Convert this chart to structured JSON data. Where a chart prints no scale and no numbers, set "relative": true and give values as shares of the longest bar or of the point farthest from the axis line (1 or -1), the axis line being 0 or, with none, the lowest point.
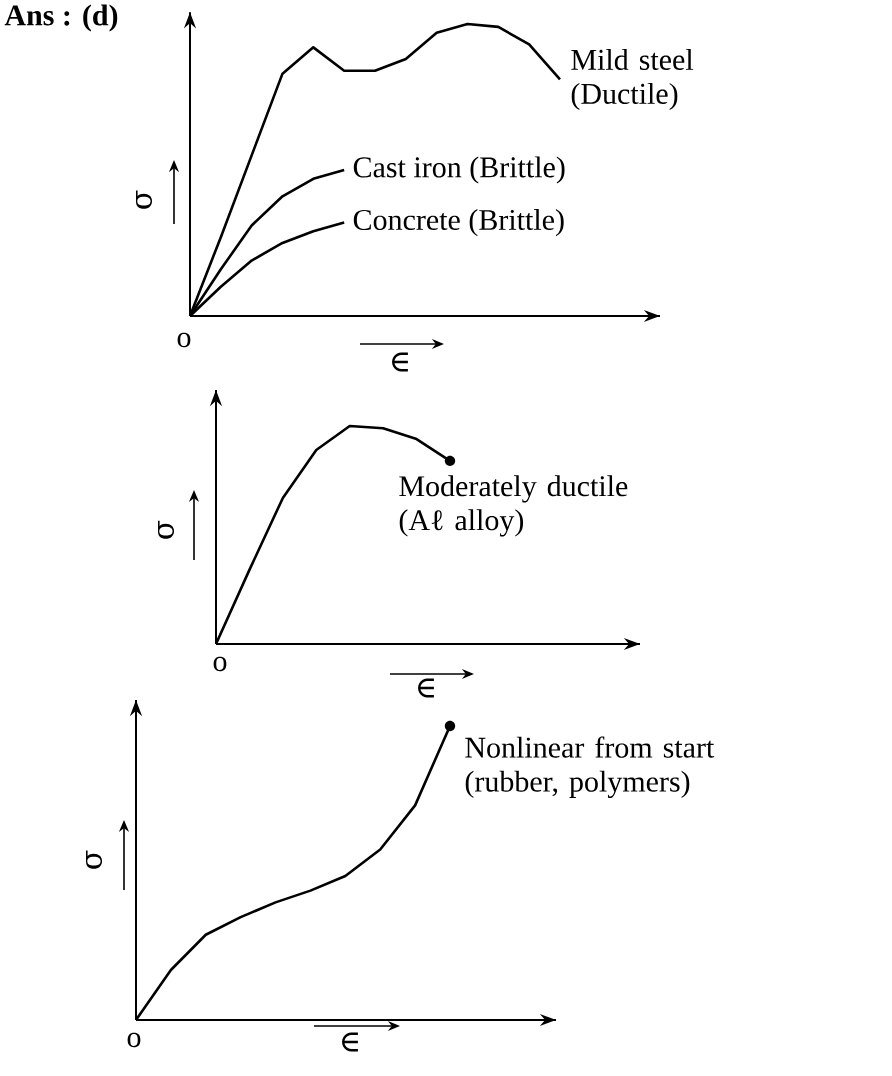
{
  "chart_data": [
    {
      "type": "line",
      "relative": true,
      "title": "Ans : (d)",
      "xlabel": "∈",
      "ylabel": "σ",
      "annotations": [
        "o"
      ],
      "tick_labels": false,
      "categories": [
        null,
        null,
        null,
        null,
        null,
        null,
        null,
        null,
        null,
        null,
        null,
        null,
        null
      ],
      "series": [
        {
          "name": "Mild steel (Ductile)",
          "color": "#000000",
          "values": [
            0,
            0.27,
            0.55,
            0.83,
            0.92,
            0.84,
            0.84,
            0.88,
            0.97,
            1.0,
            0.99,
            0.93,
            0.81
          ]
        },
        {
          "name": "Cast iron (Brittle)",
          "color": "#000000",
          "values": [
            0,
            0.16,
            0.31,
            0.41,
            0.47,
            0.5,
            null,
            null,
            null,
            null,
            null,
            null,
            null
          ]
        },
        {
          "name": "Concrete (Brittle)",
          "color": "#000000",
          "values": [
            0,
            0.1,
            0.19,
            0.25,
            0.29,
            0.32,
            null,
            null,
            null,
            null,
            null,
            null,
            null
          ]
        }
      ]
    },
    {
      "type": "line",
      "relative": true,
      "xlabel": "∈",
      "ylabel": "σ",
      "annotations": [
        "o"
      ],
      "tick_labels": false,
      "categories": [
        null,
        null,
        null,
        null,
        null,
        null,
        null,
        null
      ],
      "series": [
        {
          "name": "Moderately ductile (Aℓ alloy)",
          "color": "#000000",
          "values": [
            0,
            0.34,
            0.67,
            0.89,
            1.0,
            0.99,
            0.94,
            0.84
          ]
        }
      ]
    },
    {
      "type": "line",
      "relative": true,
      "xlabel": "∈",
      "ylabel": "σ",
      "annotations": [
        "o"
      ],
      "tick_labels": false,
      "categories": [
        null,
        null,
        null,
        null,
        null,
        null,
        null,
        null,
        null,
        null
      ],
      "series": [
        {
          "name": "Nonlinear from start (rubber, polymers)",
          "color": "#000000",
          "values": [
            0,
            0.17,
            0.29,
            0.35,
            0.4,
            0.44,
            0.49,
            0.58,
            0.73,
            1.0
          ]
        }
      ]
    }
  ]
}
